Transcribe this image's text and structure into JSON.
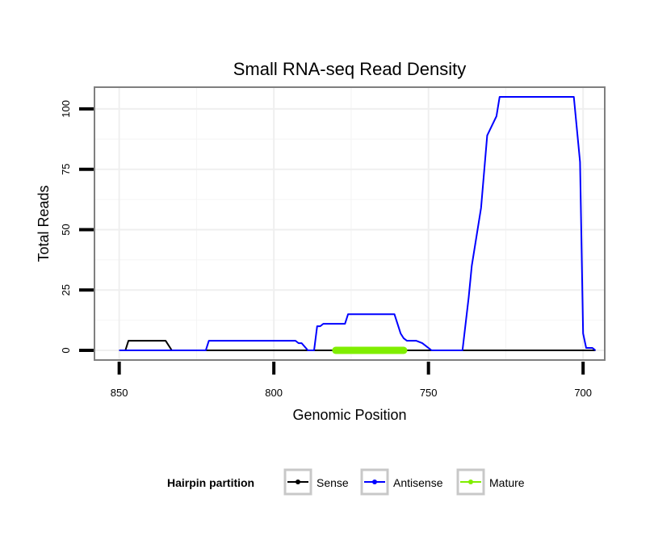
{
  "chart_data": {
    "type": "line",
    "title": "Small RNA-seq Read Density",
    "xlabel": "Genomic Position",
    "ylabel": "Total Reads",
    "xlim": [
      858,
      693
    ],
    "x_reversed": true,
    "ylim": [
      -4,
      109
    ],
    "xticks": [
      850,
      800,
      750,
      700
    ],
    "yticks": [
      0,
      25,
      50,
      75,
      100
    ],
    "xtick_labels": [
      "850",
      "800",
      "750",
      "700"
    ],
    "ytick_labels": [
      "0",
      "25",
      "50",
      "75",
      "100"
    ],
    "grid": true,
    "legend": {
      "title": "Hairpin partition",
      "position": "bottom",
      "entries": [
        "Sense",
        "Antisense",
        "Mature"
      ]
    },
    "colors": {
      "Sense": "#000000",
      "Antisense": "#0000ff",
      "Mature": "#80ee00"
    },
    "series": [
      {
        "name": "Sense",
        "x": [
          850,
          848,
          847,
          835,
          833,
          696
        ],
        "y": [
          0,
          0,
          4,
          4,
          0,
          0
        ]
      },
      {
        "name": "Antisense",
        "x": [
          850,
          822,
          821,
          793,
          792,
          791,
          789,
          787,
          786,
          785,
          784,
          777,
          776,
          761,
          759,
          758,
          757,
          754,
          752,
          749,
          748,
          739,
          737,
          736,
          733,
          731,
          728,
          727,
          725,
          703,
          701,
          700
        ],
        "y": [
          0,
          0,
          4,
          4,
          3,
          3,
          0,
          0,
          10,
          10,
          11,
          11,
          15,
          15,
          7,
          5,
          4,
          4,
          3,
          0,
          0,
          0,
          22,
          35,
          59,
          89,
          97,
          105,
          105,
          105,
          78,
          7
        ],
        "extra": [
          [
            699,
            1
          ],
          [
            697,
            1
          ],
          [
            696,
            0
          ]
        ]
      },
      {
        "name": "Mature",
        "x": [
          780,
          758
        ],
        "y": [
          0,
          0
        ]
      }
    ]
  }
}
